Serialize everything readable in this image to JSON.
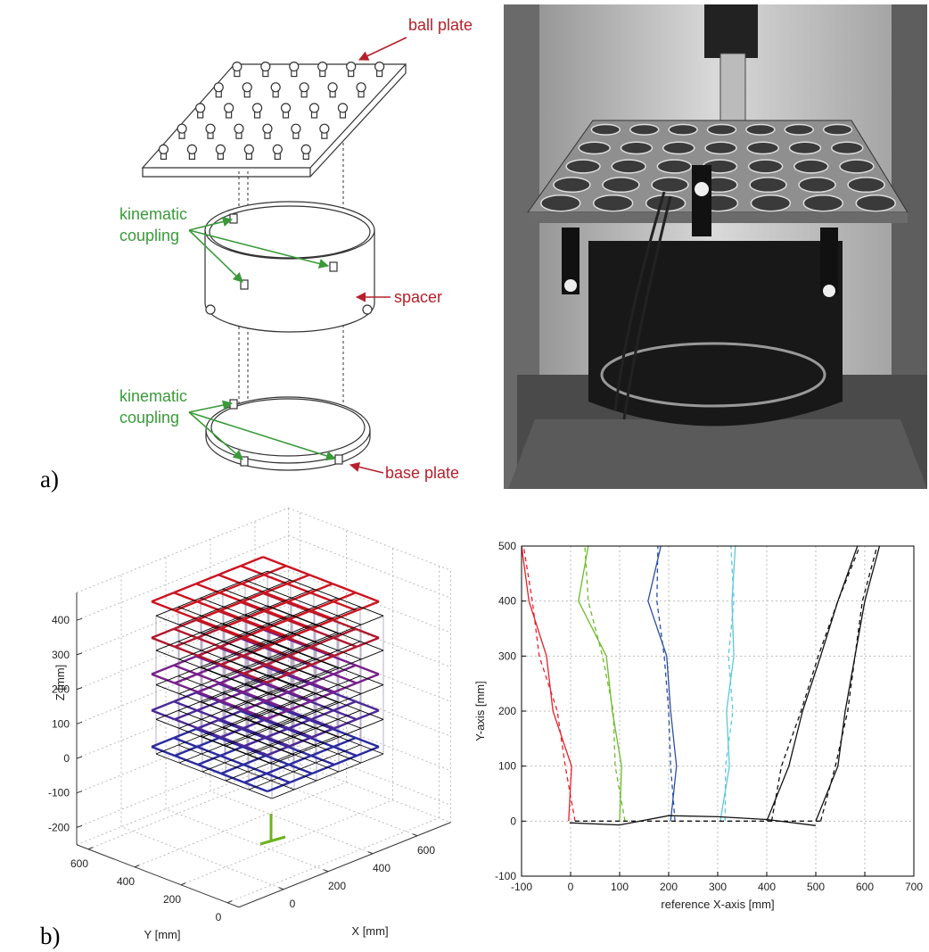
{
  "figure_a": {
    "label": "a)",
    "annotations": {
      "ball_plate": "ball plate",
      "kinematic_coupling_top": [
        "kinematic",
        "coupling"
      ],
      "spacer": "spacer",
      "kinematic_coupling_bottom": [
        "kinematic",
        "coupling"
      ],
      "base_plate": "base plate"
    }
  },
  "figure_b": {
    "label": "b)"
  },
  "chart_data": [
    {
      "type": "lattice3d",
      "xlabel": "X [mm]",
      "ylabel": "Y [mm]",
      "zlabel": "Z [mm]",
      "xlim": [
        -200,
        750
      ],
      "ylim": [
        -50,
        650
      ],
      "zlim": [
        -250,
        480
      ],
      "xticks": [
        0,
        200,
        400,
        600
      ],
      "yticks": [
        0,
        200,
        400,
        600
      ],
      "zticks": [
        -200,
        -100,
        0,
        100,
        200,
        300,
        400
      ],
      "grid": true,
      "lattice": {
        "x": [
          0,
          100,
          200,
          300,
          400,
          500
        ],
        "y": [
          0,
          100,
          200,
          300,
          400,
          500
        ],
        "z": [
          0,
          100,
          200,
          300,
          400
        ]
      },
      "layer_colors": [
        "#2a2aa0",
        "#4b2896",
        "#77208a",
        "#b0182e",
        "#cc1420"
      ]
    },
    {
      "type": "line",
      "xlabel": "reference X-axis [mm]",
      "ylabel": "Y-axis [mm]",
      "xlim": [
        -100,
        700
      ],
      "ylim": [
        -100,
        500
      ],
      "xticks": [
        -100,
        0,
        100,
        200,
        300,
        400,
        500,
        600,
        700
      ],
      "yticks": [
        -100,
        0,
        100,
        200,
        300,
        400,
        500
      ],
      "grid": true,
      "series": [
        {
          "color": "#e8202a",
          "dashed": false,
          "x": [
            -4,
            2,
            -36,
            -49,
            -85,
            -100
          ],
          "y": [
            0,
            100,
            200,
            300,
            400,
            500
          ]
        },
        {
          "color": "#e8202a",
          "dashed": true,
          "x": [
            9,
            -11,
            -27,
            -64,
            -78,
            -96
          ],
          "y": [
            0,
            100,
            200,
            300,
            400,
            500
          ]
        },
        {
          "color": "#6dbb2a",
          "dashed": false,
          "x": [
            100,
            104,
            85,
            73,
            16,
            36
          ],
          "y": [
            0,
            100,
            200,
            300,
            400,
            500
          ]
        },
        {
          "color": "#6dbb2a",
          "dashed": true,
          "x": [
            111,
            91,
            87,
            65,
            36,
            29
          ],
          "y": [
            0,
            100,
            200,
            300,
            400,
            500
          ]
        },
        {
          "color": "#2c4fa0",
          "dashed": false,
          "x": [
            204,
            216,
            204,
            196,
            158,
            184
          ],
          "y": [
            0,
            100,
            200,
            300,
            400,
            500
          ]
        },
        {
          "color": "#2c4fa0",
          "dashed": true,
          "x": [
            213,
            204,
            200,
            191,
            176,
            178
          ],
          "y": [
            0,
            100,
            200,
            300,
            400,
            500
          ]
        },
        {
          "color": "#5cc8d8",
          "dashed": false,
          "x": [
            305,
            324,
            318,
            333,
            329,
            336
          ],
          "y": [
            0,
            100,
            200,
            300,
            400,
            500
          ]
        },
        {
          "color": "#5cc8d8",
          "dashed": true,
          "x": [
            315,
            316,
            331,
            322,
            333,
            327
          ],
          "y": [
            0,
            100,
            200,
            300,
            400,
            500
          ]
        },
        {
          "color": "#111111",
          "dashed": false,
          "x": [
            400,
            445,
            473,
            510,
            545,
            585
          ],
          "y": [
            0,
            100,
            200,
            300,
            400,
            500
          ]
        },
        {
          "color": "#111111",
          "dashed": true,
          "x": [
            410,
            430,
            470,
            505,
            545,
            590
          ],
          "y": [
            0,
            100,
            200,
            300,
            400,
            500
          ]
        },
        {
          "color": "#111111",
          "dashed": false,
          "x": [
            500,
            545,
            560,
            580,
            600,
            630
          ],
          "y": [
            0,
            100,
            200,
            300,
            400,
            500
          ]
        },
        {
          "color": "#111111",
          "dashed": true,
          "x": [
            510,
            540,
            565,
            580,
            595,
            625
          ],
          "y": [
            0,
            100,
            200,
            300,
            400,
            500
          ]
        },
        {
          "color": "#111111",
          "dashed": false,
          "x": [
            -2,
            100,
            200,
            300,
            400,
            500
          ],
          "y": [
            -3,
            -7,
            10,
            8,
            3,
            -8
          ]
        },
        {
          "color": "#111111",
          "dashed": true,
          "x": [
            9,
            111,
            213,
            315,
            400,
            510
          ],
          "y": [
            0,
            0,
            0,
            0,
            0,
            0
          ]
        }
      ]
    }
  ]
}
